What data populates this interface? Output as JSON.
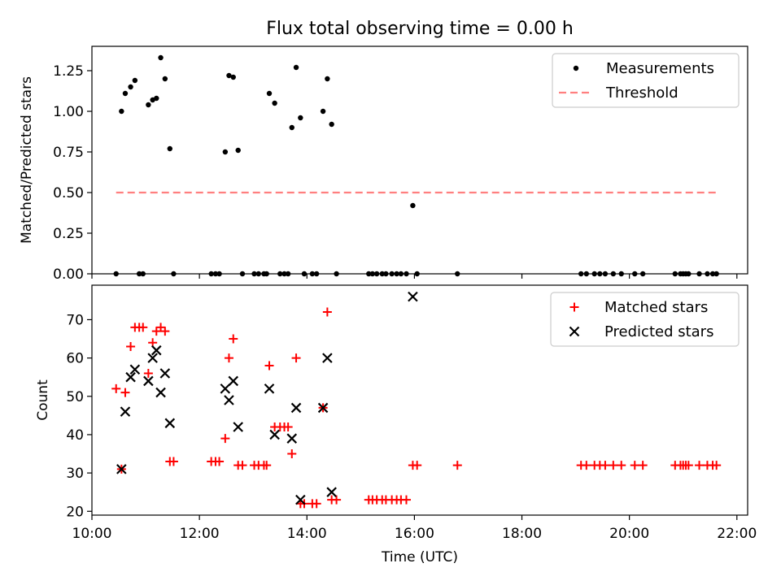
{
  "title": "Flux total observing time = 0.00 h",
  "chart_data": [
    {
      "type": "scatter",
      "panel": "top",
      "ylabel": "Matched/Predicted stars",
      "xlim": [
        10.0,
        22.2
      ],
      "ylim": [
        0,
        1.4
      ],
      "yticks": [
        0,
        0.25,
        0.5,
        0.75,
        1.0,
        1.25
      ],
      "ytick_labels": [
        "0.00",
        "0.25",
        "0.50",
        "0.75",
        "1.00",
        "1.25"
      ],
      "legend_position": "top-right",
      "legend": [
        "Measurements",
        "Threshold"
      ],
      "series": [
        {
          "name": "Measurements",
          "marker": "dot",
          "color": "#000000",
          "points": [
            [
              10.45,
              0
            ],
            [
              10.55,
              1.0
            ],
            [
              10.62,
              1.11
            ],
            [
              10.72,
              1.15
            ],
            [
              10.8,
              1.19
            ],
            [
              10.88,
              0
            ],
            [
              10.95,
              0
            ],
            [
              11.05,
              1.04
            ],
            [
              11.13,
              1.07
            ],
            [
              11.2,
              1.08
            ],
            [
              11.28,
              1.33
            ],
            [
              11.36,
              1.2
            ],
            [
              11.45,
              0.77
            ],
            [
              11.52,
              0
            ],
            [
              12.22,
              0
            ],
            [
              12.3,
              0
            ],
            [
              12.37,
              0
            ],
            [
              12.48,
              0.75
            ],
            [
              12.55,
              1.22
            ],
            [
              12.63,
              1.21
            ],
            [
              12.72,
              0.76
            ],
            [
              12.8,
              0
            ],
            [
              13.02,
              0
            ],
            [
              13.1,
              0
            ],
            [
              13.2,
              0
            ],
            [
              13.25,
              0
            ],
            [
              13.3,
              1.11
            ],
            [
              13.4,
              1.05
            ],
            [
              13.5,
              0
            ],
            [
              13.58,
              0
            ],
            [
              13.65,
              0
            ],
            [
              13.72,
              0.9
            ],
            [
              13.8,
              1.27
            ],
            [
              13.88,
              0.96
            ],
            [
              13.95,
              0
            ],
            [
              14.1,
              0
            ],
            [
              14.18,
              0
            ],
            [
              14.3,
              1.0
            ],
            [
              14.38,
              1.2
            ],
            [
              14.46,
              0.92
            ],
            [
              14.55,
              0
            ],
            [
              15.15,
              0
            ],
            [
              15.22,
              0
            ],
            [
              15.3,
              0
            ],
            [
              15.4,
              0
            ],
            [
              15.47,
              0
            ],
            [
              15.58,
              0
            ],
            [
              15.67,
              0
            ],
            [
              15.75,
              0
            ],
            [
              15.85,
              0
            ],
            [
              15.97,
              0.42
            ],
            [
              16.05,
              0
            ],
            [
              16.8,
              0
            ],
            [
              19.1,
              0
            ],
            [
              19.2,
              0
            ],
            [
              19.35,
              0
            ],
            [
              19.45,
              0
            ],
            [
              19.55,
              0
            ],
            [
              19.7,
              0
            ],
            [
              19.85,
              0
            ],
            [
              20.1,
              0
            ],
            [
              20.25,
              0
            ],
            [
              20.85,
              0
            ],
            [
              20.95,
              0
            ],
            [
              21.0,
              0
            ],
            [
              21.05,
              0
            ],
            [
              21.1,
              0
            ],
            [
              21.3,
              0
            ],
            [
              21.45,
              0
            ],
            [
              21.55,
              0
            ],
            [
              21.62,
              0
            ]
          ]
        },
        {
          "name": "Threshold",
          "style": "dashed-line",
          "color": "#ff7f7f",
          "x": [
            10.45,
            21.62
          ],
          "y": [
            0.5,
            0.5
          ]
        }
      ]
    },
    {
      "type": "scatter",
      "panel": "bottom",
      "xlabel": "Time (UTC)",
      "ylabel": "Count",
      "xlim": [
        10.0,
        22.2
      ],
      "ylim": [
        19,
        79
      ],
      "xticks": [
        10,
        12,
        14,
        16,
        18,
        20,
        22
      ],
      "xtick_labels": [
        "10:00",
        "12:00",
        "14:00",
        "16:00",
        "18:00",
        "20:00",
        "22:00"
      ],
      "yticks": [
        20,
        30,
        40,
        50,
        60,
        70
      ],
      "ytick_labels": [
        "20",
        "30",
        "40",
        "50",
        "60",
        "70"
      ],
      "legend_position": "top-right",
      "legend": [
        "Matched stars",
        "Predicted stars"
      ],
      "series": [
        {
          "name": "Matched stars",
          "marker": "plus",
          "color": "#ff0000",
          "points": [
            [
              10.45,
              52
            ],
            [
              10.55,
              31
            ],
            [
              10.62,
              51
            ],
            [
              10.72,
              63
            ],
            [
              10.8,
              68
            ],
            [
              10.88,
              68
            ],
            [
              10.95,
              68
            ],
            [
              11.05,
              56
            ],
            [
              11.13,
              64
            ],
            [
              11.2,
              67
            ],
            [
              11.28,
              68
            ],
            [
              11.36,
              67
            ],
            [
              11.45,
              33
            ],
            [
              11.52,
              33
            ],
            [
              12.22,
              33
            ],
            [
              12.3,
              33
            ],
            [
              12.37,
              33
            ],
            [
              12.48,
              39
            ],
            [
              12.55,
              60
            ],
            [
              12.63,
              65
            ],
            [
              12.72,
              32
            ],
            [
              12.8,
              32
            ],
            [
              13.02,
              32
            ],
            [
              13.1,
              32
            ],
            [
              13.2,
              32
            ],
            [
              13.25,
              32
            ],
            [
              13.3,
              58
            ],
            [
              13.4,
              42
            ],
            [
              13.5,
              42
            ],
            [
              13.58,
              42
            ],
            [
              13.65,
              42
            ],
            [
              13.72,
              35
            ],
            [
              13.8,
              60
            ],
            [
              13.88,
              22
            ],
            [
              13.95,
              22
            ],
            [
              14.1,
              22
            ],
            [
              14.18,
              22
            ],
            [
              14.3,
              47
            ],
            [
              14.38,
              72
            ],
            [
              14.46,
              23
            ],
            [
              14.55,
              23
            ],
            [
              15.15,
              23
            ],
            [
              15.22,
              23
            ],
            [
              15.3,
              23
            ],
            [
              15.4,
              23
            ],
            [
              15.47,
              23
            ],
            [
              15.58,
              23
            ],
            [
              15.67,
              23
            ],
            [
              15.75,
              23
            ],
            [
              15.85,
              23
            ],
            [
              15.97,
              32
            ],
            [
              16.05,
              32
            ],
            [
              16.8,
              32
            ],
            [
              19.1,
              32
            ],
            [
              19.2,
              32
            ],
            [
              19.35,
              32
            ],
            [
              19.45,
              32
            ],
            [
              19.55,
              32
            ],
            [
              19.7,
              32
            ],
            [
              19.85,
              32
            ],
            [
              20.1,
              32
            ],
            [
              20.25,
              32
            ],
            [
              20.85,
              32
            ],
            [
              20.95,
              32
            ],
            [
              21.0,
              32
            ],
            [
              21.05,
              32
            ],
            [
              21.1,
              32
            ],
            [
              21.3,
              32
            ],
            [
              21.45,
              32
            ],
            [
              21.55,
              32
            ],
            [
              21.62,
              32
            ]
          ]
        },
        {
          "name": "Predicted stars",
          "marker": "x",
          "color": "#000000",
          "points": [
            [
              10.55,
              31
            ],
            [
              10.62,
              46
            ],
            [
              10.72,
              55
            ],
            [
              10.8,
              57
            ],
            [
              11.05,
              54
            ],
            [
              11.13,
              60
            ],
            [
              11.2,
              62
            ],
            [
              11.28,
              51
            ],
            [
              11.36,
              56
            ],
            [
              11.45,
              43
            ],
            [
              12.48,
              52
            ],
            [
              12.55,
              49
            ],
            [
              12.63,
              54
            ],
            [
              12.72,
              42
            ],
            [
              13.3,
              52
            ],
            [
              13.4,
              40
            ],
            [
              13.72,
              39
            ],
            [
              13.8,
              47
            ],
            [
              13.88,
              23
            ],
            [
              14.3,
              47
            ],
            [
              14.38,
              60
            ],
            [
              14.46,
              25
            ],
            [
              15.97,
              76
            ]
          ]
        }
      ]
    }
  ]
}
